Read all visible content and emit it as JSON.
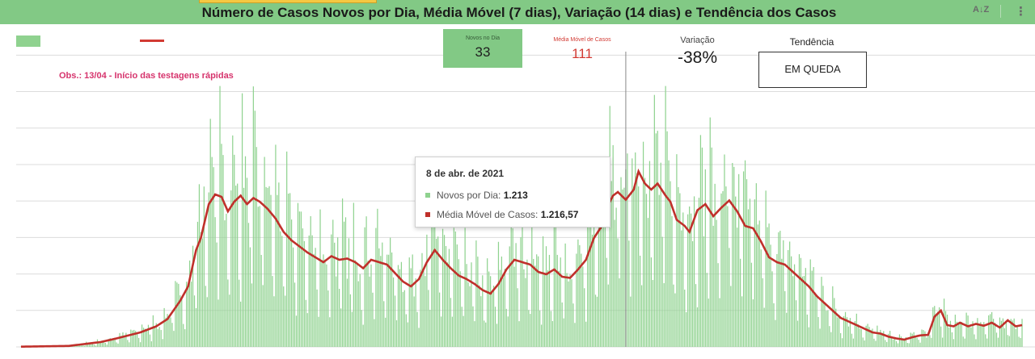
{
  "header": {
    "title": "Número de Casos Novos por Dia, Média Móvel (7 dias), Variação (14 dias) e Tendência dos Casos",
    "sort_icon": "sort-az-icon",
    "more_icon": "more-vertical-icon"
  },
  "kpis": {
    "new_label": "Novos no Dia",
    "new_value": "33",
    "avg_label": "Média Móvel de Casos",
    "avg_value": "111",
    "var_label": "Variação",
    "var_value": "-38%",
    "trend_label": "Tendência",
    "trend_value": "EM QUEDA"
  },
  "annotation": "Obs.: 13/04 - Início das testagens rápidas",
  "tooltip": {
    "date": "8 de abr. de 2021",
    "new_label": "Novos por Dia:",
    "new_value": "1.213",
    "avg_label": "Média Móvel de Casos:",
    "avg_value": "1.216,57"
  },
  "colors": {
    "header": "#82c985",
    "bars": "#8fd28f",
    "line": "#c0302b",
    "annotation": "#d6336c"
  },
  "chart_data": {
    "type": "bar",
    "ylim": [
      0,
      2200
    ],
    "grid": true,
    "legend": "top-left",
    "highlight_index": 380,
    "series": [
      {
        "name": "Novos por Dia",
        "kind": "bar"
      },
      {
        "name": "Média Móvel de Casos",
        "kind": "line"
      }
    ],
    "trend_points": [
      [
        0,
        2
      ],
      [
        30,
        8
      ],
      [
        50,
        40
      ],
      [
        60,
        70
      ],
      [
        75,
        120
      ],
      [
        85,
        170
      ],
      [
        92,
        230
      ],
      [
        100,
        380
      ],
      [
        105,
        500
      ],
      [
        110,
        800
      ],
      [
        113,
        900
      ],
      [
        118,
        1180
      ],
      [
        122,
        1260
      ],
      [
        126,
        1240
      ],
      [
        130,
        1120
      ],
      [
        134,
        1200
      ],
      [
        138,
        1250
      ],
      [
        142,
        1180
      ],
      [
        146,
        1230
      ],
      [
        150,
        1200
      ],
      [
        155,
        1140
      ],
      [
        160,
        1060
      ],
      [
        165,
        950
      ],
      [
        170,
        880
      ],
      [
        175,
        830
      ],
      [
        180,
        780
      ],
      [
        185,
        740
      ],
      [
        190,
        700
      ],
      [
        195,
        750
      ],
      [
        200,
        720
      ],
      [
        205,
        730
      ],
      [
        210,
        700
      ],
      [
        215,
        650
      ],
      [
        220,
        720
      ],
      [
        225,
        700
      ],
      [
        230,
        680
      ],
      [
        235,
        610
      ],
      [
        240,
        540
      ],
      [
        245,
        500
      ],
      [
        250,
        560
      ],
      [
        255,
        700
      ],
      [
        260,
        800
      ],
      [
        265,
        720
      ],
      [
        270,
        650
      ],
      [
        275,
        590
      ],
      [
        280,
        560
      ],
      [
        285,
        520
      ],
      [
        290,
        470
      ],
      [
        295,
        440
      ],
      [
        300,
        520
      ],
      [
        305,
        640
      ],
      [
        310,
        720
      ],
      [
        315,
        700
      ],
      [
        320,
        680
      ],
      [
        325,
        620
      ],
      [
        330,
        600
      ],
      [
        335,
        640
      ],
      [
        340,
        580
      ],
      [
        345,
        570
      ],
      [
        350,
        640
      ],
      [
        355,
        720
      ],
      [
        360,
        900
      ],
      [
        365,
        1000
      ],
      [
        368,
        1150
      ],
      [
        372,
        1250
      ],
      [
        375,
        1280
      ],
      [
        380,
        1216
      ],
      [
        385,
        1300
      ],
      [
        388,
        1450
      ],
      [
        392,
        1350
      ],
      [
        396,
        1300
      ],
      [
        400,
        1350
      ],
      [
        405,
        1250
      ],
      [
        408,
        1200
      ],
      [
        412,
        1050
      ],
      [
        417,
        1000
      ],
      [
        420,
        950
      ],
      [
        425,
        1130
      ],
      [
        430,
        1180
      ],
      [
        435,
        1080
      ],
      [
        440,
        1150
      ],
      [
        445,
        1210
      ],
      [
        450,
        1120
      ],
      [
        455,
        1000
      ],
      [
        460,
        980
      ],
      [
        465,
        870
      ],
      [
        470,
        740
      ],
      [
        475,
        700
      ],
      [
        480,
        680
      ],
      [
        485,
        620
      ],
      [
        490,
        560
      ],
      [
        495,
        500
      ],
      [
        500,
        420
      ],
      [
        505,
        360
      ],
      [
        510,
        300
      ],
      [
        515,
        240
      ],
      [
        520,
        210
      ],
      [
        525,
        180
      ],
      [
        530,
        150
      ],
      [
        535,
        120
      ],
      [
        540,
        110
      ],
      [
        545,
        85
      ],
      [
        550,
        70
      ],
      [
        555,
        60
      ],
      [
        560,
        80
      ],
      [
        565,
        95
      ],
      [
        570,
        100
      ],
      [
        574,
        250
      ],
      [
        578,
        300
      ],
      [
        582,
        180
      ],
      [
        586,
        170
      ],
      [
        590,
        200
      ],
      [
        595,
        170
      ],
      [
        600,
        190
      ],
      [
        605,
        175
      ],
      [
        610,
        200
      ],
      [
        615,
        160
      ],
      [
        620,
        220
      ],
      [
        625,
        170
      ],
      [
        629,
        180
      ]
    ]
  }
}
